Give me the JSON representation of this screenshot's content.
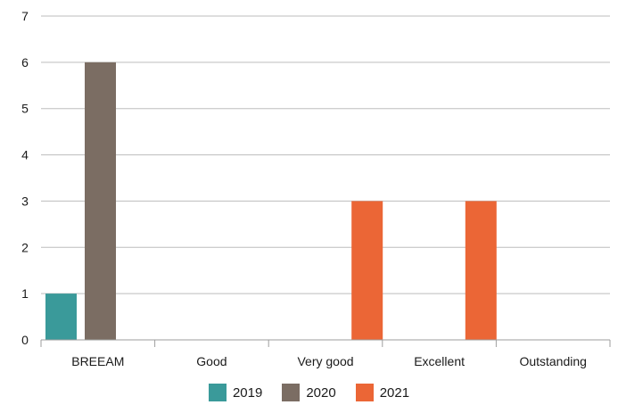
{
  "chart_data": {
    "type": "bar",
    "categories": [
      "BREEAM",
      "Good",
      "Very good",
      "Excellent",
      "Outstanding"
    ],
    "series": [
      {
        "name": "2019",
        "color": "#3a9a9a",
        "values": [
          1,
          0,
          0,
          0,
          0
        ]
      },
      {
        "name": "2020",
        "color": "#7b6d63",
        "values": [
          6,
          0,
          0,
          0,
          0
        ]
      },
      {
        "name": "2021",
        "color": "#eb6636",
        "values": [
          0,
          0,
          3,
          3,
          0
        ]
      }
    ],
    "title": "",
    "xlabel": "",
    "ylabel": "",
    "ylim": [
      0,
      7
    ],
    "yticks": [
      0,
      1,
      2,
      3,
      4,
      5,
      6,
      7
    ],
    "grid": true,
    "legend_position": "bottom"
  }
}
